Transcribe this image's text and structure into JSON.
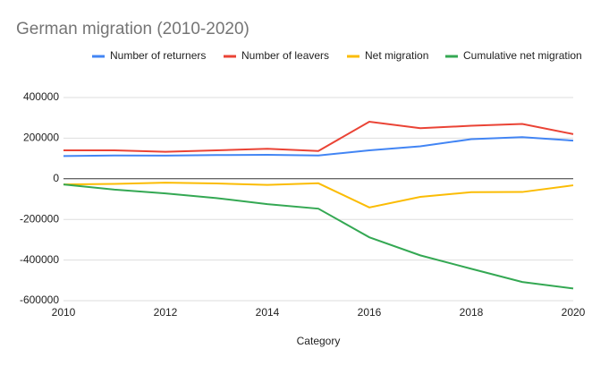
{
  "chart_data": {
    "type": "line",
    "title": "German migration (2010-2020)",
    "x_label": "Category",
    "x": [
      2010,
      2011,
      2012,
      2013,
      2014,
      2015,
      2016,
      2017,
      2018,
      2019,
      2020
    ],
    "series": [
      {
        "name": "Number of returners",
        "color": "#4285f4",
        "values": [
          112000,
          115000,
          114000,
          117000,
          118000,
          115000,
          140000,
          160000,
          195000,
          205000,
          188000
        ]
      },
      {
        "name": "Number of leavers",
        "color": "#ea4335",
        "values": [
          140000,
          140000,
          133000,
          140000,
          148000,
          137000,
          281000,
          249000,
          261000,
          270000,
          220000
        ]
      },
      {
        "name": "Net migration",
        "color": "#fbbc04",
        "values": [
          -28000,
          -25000,
          -19000,
          -23000,
          -30000,
          -22000,
          -141000,
          -89000,
          -66000,
          -65000,
          -32000
        ]
      },
      {
        "name": "Cumulative net migration",
        "color": "#34a853",
        "values": [
          -28000,
          -53000,
          -72000,
          -95000,
          -125000,
          -147000,
          -288000,
          -377000,
          -443000,
          -508000,
          -540000
        ]
      }
    ],
    "xlim": [
      2010,
      2020
    ],
    "xticks": [
      2010,
      2012,
      2014,
      2016,
      2018,
      2020
    ],
    "ylim": [
      -600000,
      400000
    ],
    "yticks": [
      -600000,
      -400000,
      -200000,
      0,
      200000,
      400000
    ],
    "grid": true,
    "legend": "top"
  }
}
